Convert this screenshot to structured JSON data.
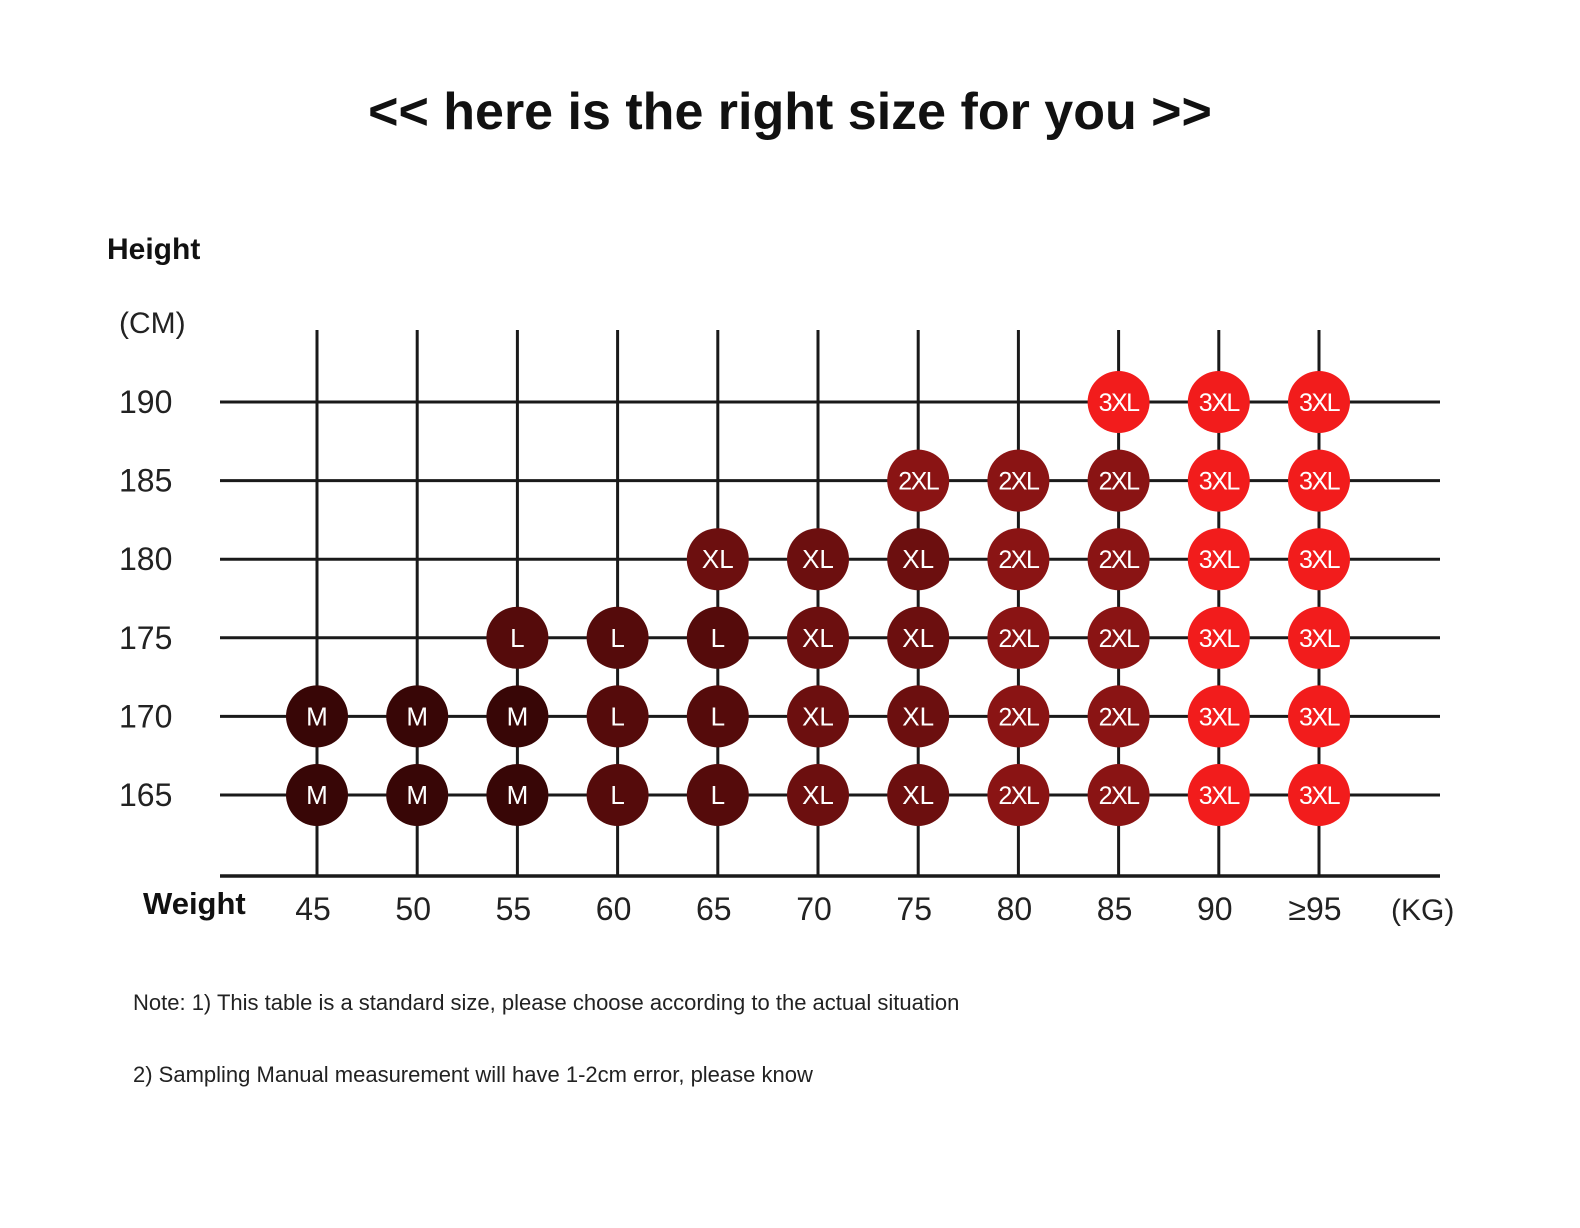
{
  "title": "<< here is the right size for you >>",
  "chart_data": {
    "type": "table",
    "ylabel": "Height",
    "y_unit": "(CM)",
    "xlabel": "Weight",
    "x_unit": "(KG)",
    "x_categories": [
      "45",
      "50",
      "55",
      "60",
      "65",
      "70",
      "75",
      "80",
      "85",
      "90",
      "≥95"
    ],
    "y_categories": [
      "190",
      "185",
      "180",
      "175",
      "170",
      "165"
    ],
    "cells": [
      [
        "",
        "",
        "",
        "",
        "",
        "",
        "",
        "",
        "3XL",
        "3XL",
        "3XL"
      ],
      [
        "",
        "",
        "",
        "",
        "",
        "",
        "2XL",
        "2XL",
        "2XL",
        "3XL",
        "3XL"
      ],
      [
        "",
        "",
        "",
        "",
        "XL",
        "XL",
        "XL",
        "2XL",
        "2XL",
        "3XL",
        "3XL"
      ],
      [
        "",
        "",
        "L",
        "L",
        "L",
        "XL",
        "XL",
        "2XL",
        "2XL",
        "3XL",
        "3XL"
      ],
      [
        "M",
        "M",
        "M",
        "L",
        "L",
        "XL",
        "XL",
        "2XL",
        "2XL",
        "3XL",
        "3XL"
      ],
      [
        "M",
        "M",
        "M",
        "L",
        "L",
        "XL",
        "XL",
        "2XL",
        "2XL",
        "3XL",
        "3XL"
      ]
    ],
    "size_colors": {
      "M": "#380606",
      "L": "#550b0b",
      "XL": "#6c0f0f",
      "2XL": "#8a1414",
      "3XL": "#f21c1c"
    },
    "line_color": "#1a1a1a"
  },
  "notes": {
    "line1": "Note: 1) This table is a standard size, please choose according to the actual situation",
    "line2": "2) Sampling Manual measurement will have 1-2cm error, please know"
  }
}
